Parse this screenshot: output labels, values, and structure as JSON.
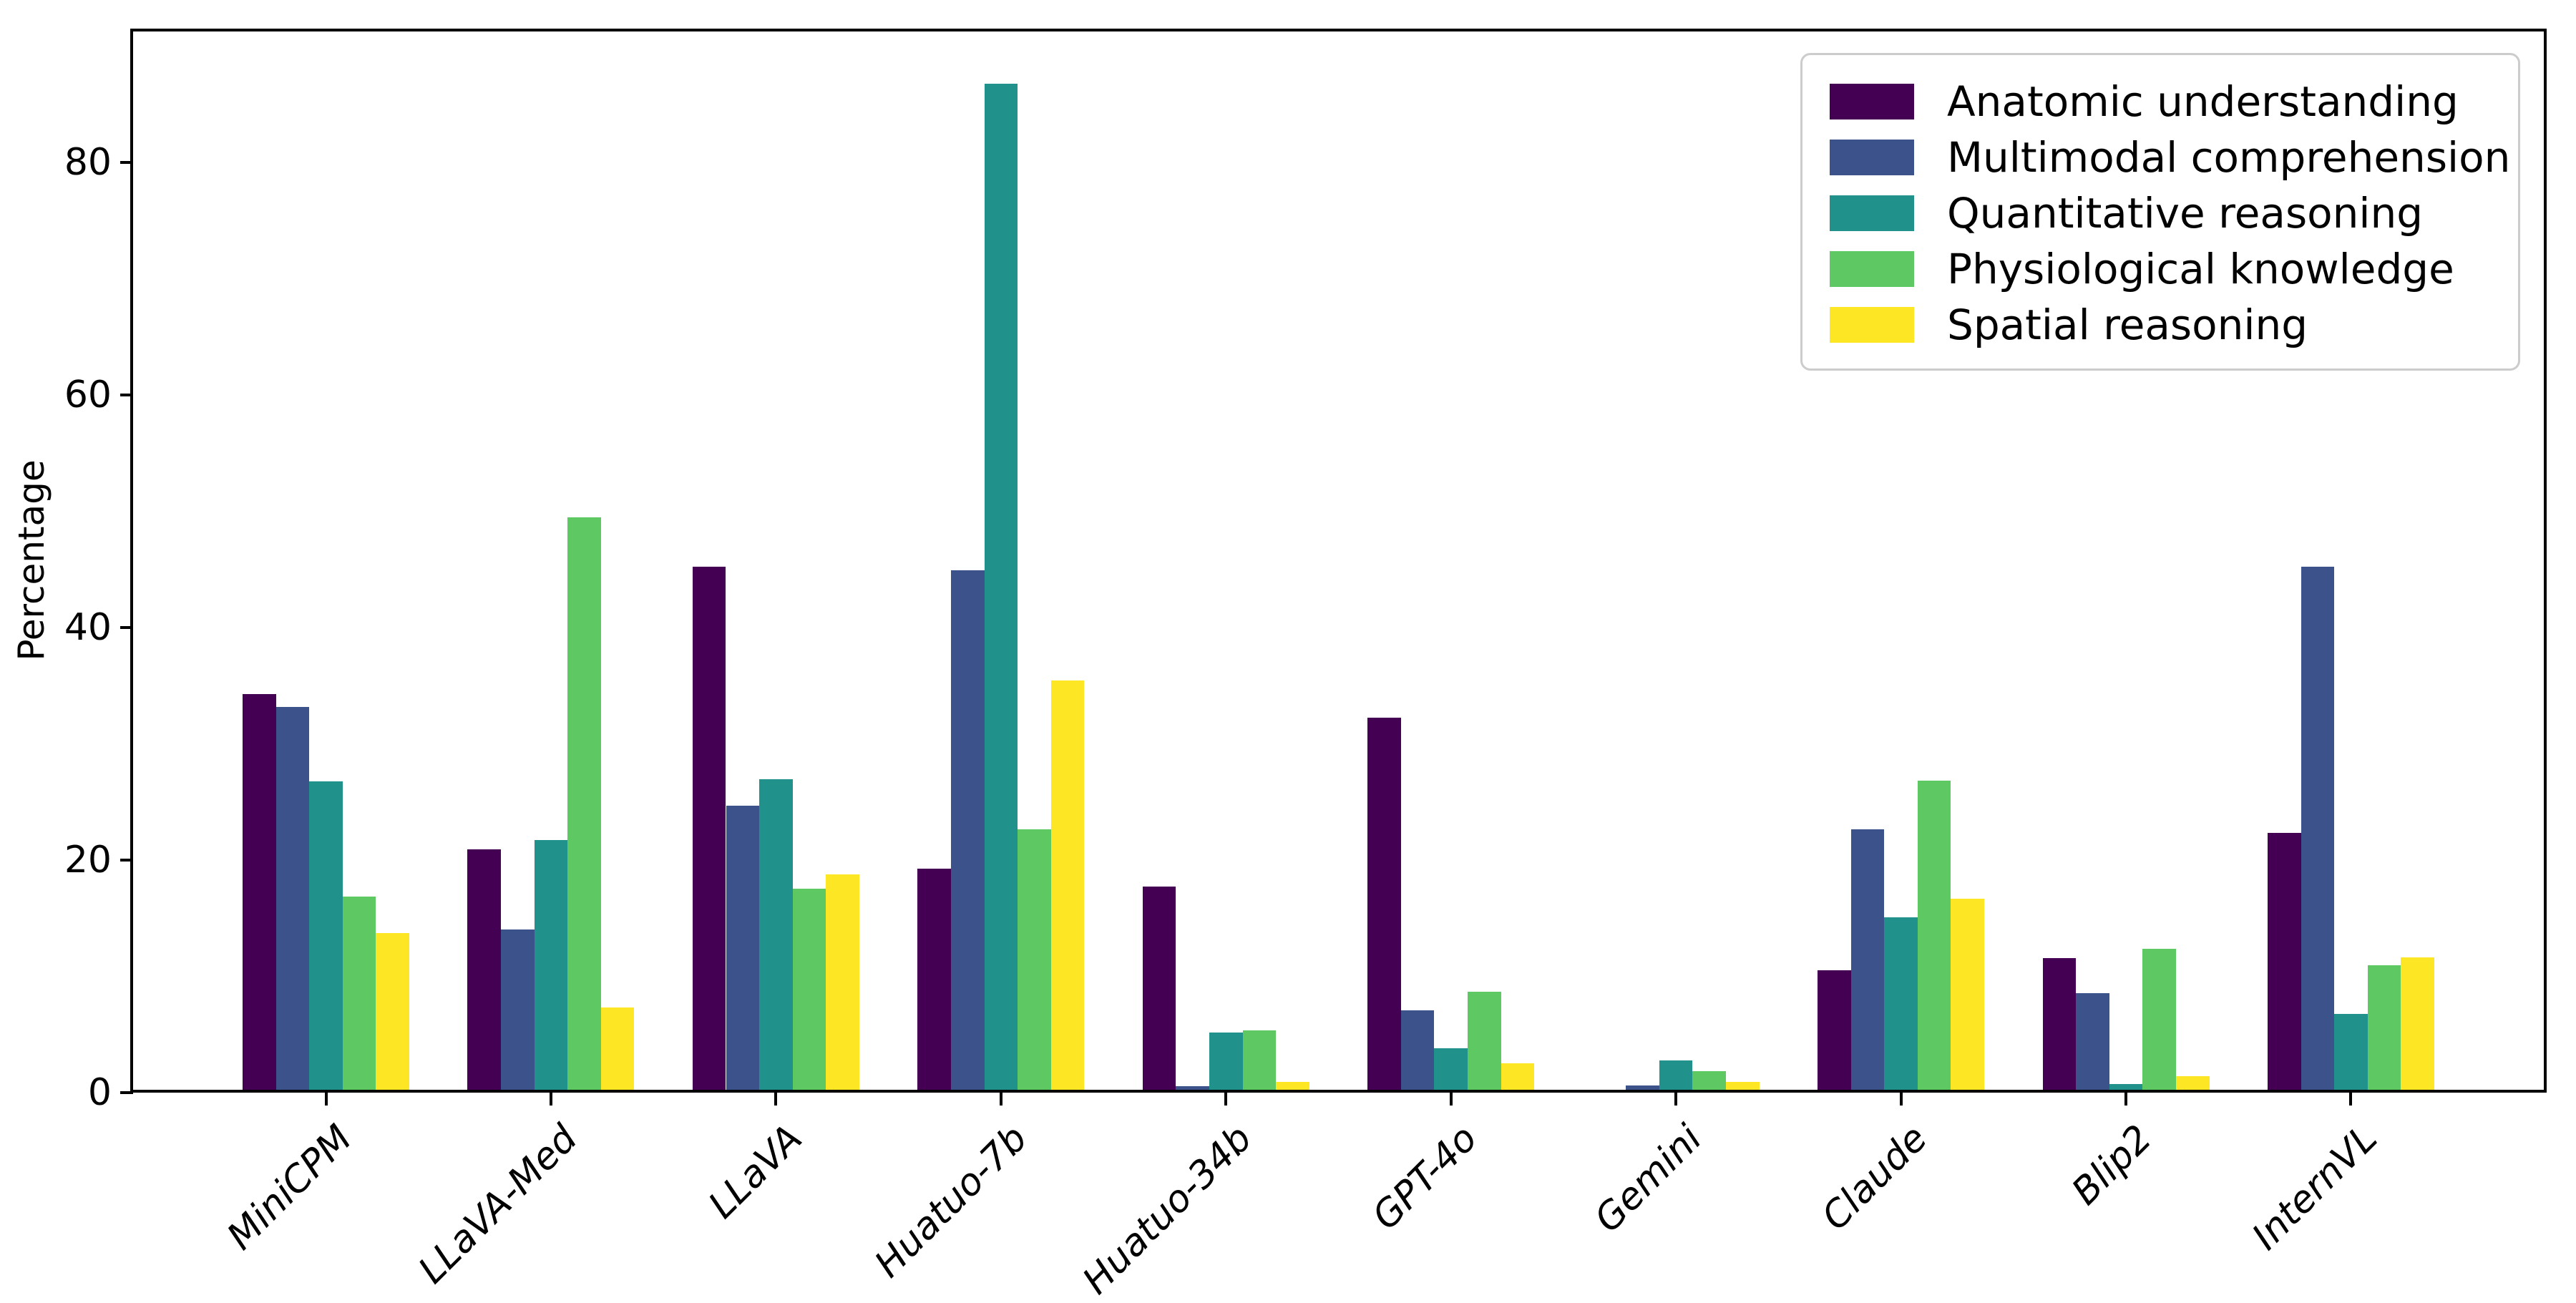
{
  "figure": {
    "background": "#ffffff",
    "axis_color": "#000000",
    "legend_border_color": "#cccccc"
  },
  "chart_data": {
    "type": "bar",
    "title": "",
    "xlabel": "",
    "ylabel": "Percentage",
    "ylim": [
      0,
      91
    ],
    "yticks": [
      0,
      20,
      40,
      60,
      80
    ],
    "grid": false,
    "legend_position": "upper right",
    "categories": [
      "MiniCPM",
      "LLaVA-Med",
      "LLaVA",
      "Huatuo-7b",
      "Huatuo-34b",
      "GPT-4o",
      "Gemini",
      "Claude",
      "Blip2",
      "InternVL"
    ],
    "series": [
      {
        "name": "Anatomic understanding",
        "color": "#440154",
        "values": [
          34.0,
          20.7,
          45.0,
          19.0,
          17.5,
          32.0,
          0.0,
          10.3,
          11.3,
          22.1
        ]
      },
      {
        "name": "Multimodal comprehension",
        "color": "#3b528b",
        "values": [
          32.9,
          13.8,
          24.4,
          44.7,
          0.3,
          6.8,
          0.4,
          22.4,
          8.3,
          45.0
        ]
      },
      {
        "name": "Quantitative reasoning",
        "color": "#21918c",
        "values": [
          26.5,
          21.5,
          26.7,
          86.5,
          4.9,
          3.6,
          2.5,
          14.8,
          0.5,
          6.5
        ]
      },
      {
        "name": "Physiological knowledge",
        "color": "#5ec962",
        "values": [
          16.6,
          49.2,
          17.3,
          22.4,
          5.1,
          8.4,
          1.6,
          26.6,
          12.1,
          10.7
        ]
      },
      {
        "name": "Spatial reasoning",
        "color": "#fde725",
        "values": [
          13.5,
          7.1,
          18.5,
          35.2,
          0.7,
          2.3,
          0.7,
          16.4,
          1.2,
          11.4
        ]
      }
    ]
  }
}
